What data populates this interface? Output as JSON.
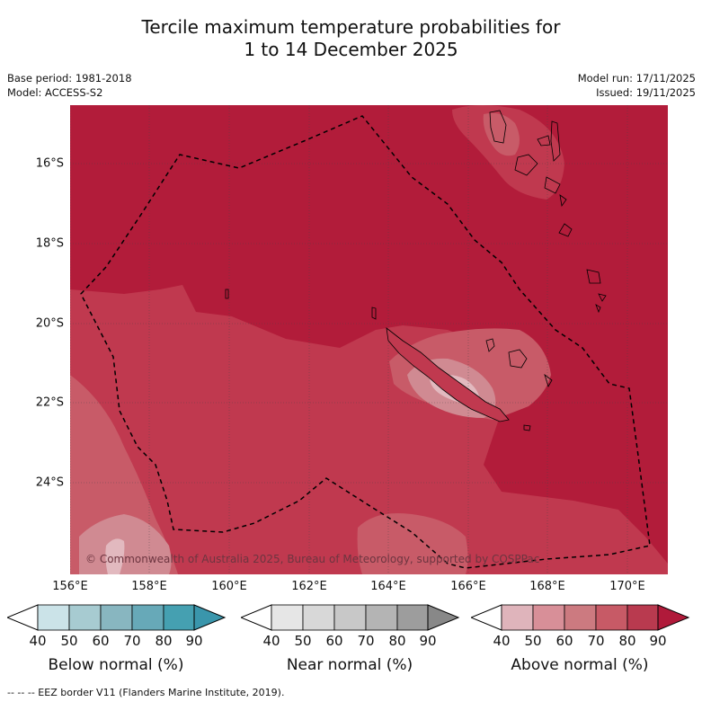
{
  "title": {
    "line1": "Tercile maximum temperature probabilities for",
    "line2": "1 to 14 December 2025"
  },
  "meta": {
    "base_period": "Base period: 1981-2018",
    "model": "Model: ACCESS-S2",
    "model_run": "Model run: 17/11/2025",
    "issued": "Issued: 19/11/2025"
  },
  "map": {
    "copyright": "© Commonwealth of Australia 2025, Bureau of Meteorology, supported by COSPPac",
    "lat_labels": [
      "16°S",
      "18°S",
      "20°S",
      "22°S",
      "24°S"
    ],
    "lon_labels": [
      "156°E",
      "158°E",
      "160°E",
      "162°E",
      "164°E",
      "166°E",
      "168°E",
      "170°E"
    ],
    "colors": {
      "above_80_90": "#b21c3a",
      "above_70_80": "#c0394f",
      "above_60_70": "#c85b68",
      "above_50_60": "#d08a92",
      "above_40_50": "#e2b9bf"
    }
  },
  "colorbars": [
    {
      "label": "Below normal (%)",
      "ticks": [
        "40",
        "50",
        "60",
        "70",
        "80",
        "90"
      ],
      "colors": [
        "#ffffff",
        "#cbe3e8",
        "#a7cbd1",
        "#88b6c0",
        "#67a9b8",
        "#45a0b1",
        "#3a96ac"
      ]
    },
    {
      "label": "Near normal (%)",
      "ticks": [
        "40",
        "50",
        "60",
        "70",
        "80",
        "90"
      ],
      "colors": [
        "#ffffff",
        "#e6e6e6",
        "#d8d8d8",
        "#c8c8c8",
        "#b4b4b4",
        "#9d9d9d",
        "#888888"
      ]
    },
    {
      "label": "Above normal (%)",
      "ticks": [
        "40",
        "50",
        "60",
        "70",
        "80",
        "90"
      ],
      "colors": [
        "#ffffff",
        "#dfb4bb",
        "#d88f98",
        "#cc7a80",
        "#c75a66",
        "#b93a4f",
        "#b01a3a"
      ]
    }
  ],
  "footnote": "-- -- -- EEZ border V11 (Flanders Marine Institute, 2019)."
}
